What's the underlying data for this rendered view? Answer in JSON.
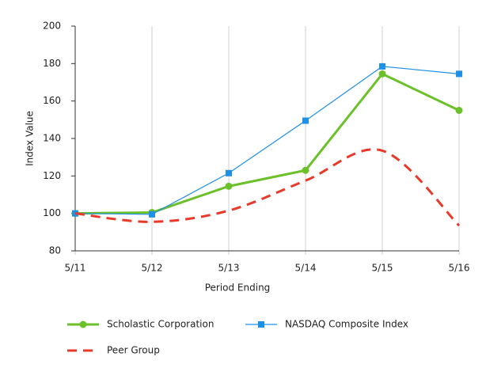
{
  "chart_data": {
    "type": "line",
    "categories": [
      "5/11",
      "5/12",
      "5/13",
      "5/14",
      "5/15",
      "5/16"
    ],
    "x_label": "Period Ending",
    "y_label": "Index Value",
    "ylim": [
      80,
      200
    ],
    "yticks": [
      80,
      100,
      120,
      140,
      160,
      180,
      200
    ],
    "grid": "x",
    "series": [
      {
        "name": "Scholastic Corporation",
        "color": "#6cc12a",
        "marker": "circle",
        "dash": false,
        "smooth": false,
        "width": 3,
        "values": [
          100,
          100.5,
          114.5,
          123,
          174.5,
          155
        ]
      },
      {
        "name": "NASDAQ Composite Index",
        "color": "#1e90e6",
        "marker": "square",
        "dash": false,
        "smooth": false,
        "width": 1.2,
        "values": [
          100,
          99.5,
          121.5,
          149.5,
          178.5,
          174.5
        ]
      },
      {
        "name": "Peer Group",
        "color": "#e8392b",
        "marker": null,
        "dash": true,
        "smooth": true,
        "width": 3,
        "values": [
          100,
          95.5,
          101.5,
          117.5,
          133.5,
          93.5
        ]
      }
    ]
  }
}
